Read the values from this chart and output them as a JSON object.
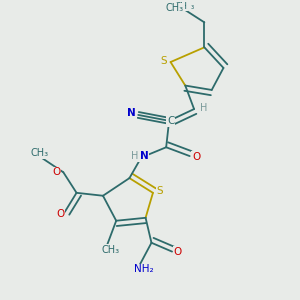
{
  "bg_color": "#e8ebe8",
  "bond_color": "#2d6b6b",
  "S_color": "#b8a000",
  "N_color": "#0000cc",
  "O_color": "#cc0000",
  "C_color": "#2d6b6b",
  "H_color": "#7a9a9a",
  "font_size": 7.5,
  "bond_lw": 1.3,
  "figsize": [
    3.0,
    3.0
  ],
  "dpi": 100,
  "xlim": [
    0,
    10
  ],
  "ylim": [
    0,
    10
  ]
}
